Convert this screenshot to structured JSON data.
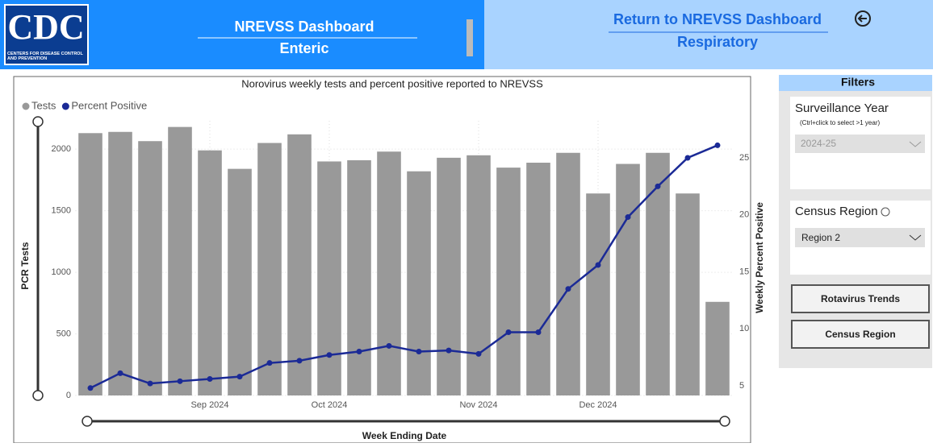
{
  "header": {
    "logo": "CDC",
    "logo_subtitle": "CENTERS FOR DISEASE CONTROL AND PREVENTION",
    "title": "NREVSS Dashboard",
    "subtitle": "Enteric",
    "return_link": "Return to NREVSS Dashboard",
    "return_subtitle": "Respiratory"
  },
  "filters": {
    "title": "Filters",
    "year_label": "Surveillance Year",
    "year_hint": "(Ctrl+click to select >1 year)",
    "year_value": "2024-25",
    "region_label": "Census Region",
    "region_value": "Region 2",
    "buttons": [
      "Rotavirus Trends",
      "Census Region"
    ]
  },
  "chart_data": {
    "type": "bar_line",
    "title": "Norovirus weekly tests and percent positive reported to NREVSS",
    "x_label": "Week Ending Date",
    "y_label": "PCR Tests",
    "y2_label": "Weekly Percent Positive",
    "categories": [
      null,
      null,
      null,
      null,
      "Sep 2024",
      null,
      null,
      null,
      "Oct 2024",
      null,
      null,
      null,
      null,
      "Nov 2024",
      null,
      null,
      null,
      "Dec 2024",
      null,
      null,
      null,
      null
    ],
    "series": [
      {
        "name": "Tests",
        "color": "#999999",
        "type": "bar",
        "values": [
          2130,
          2140,
          2065,
          2180,
          1990,
          1840,
          2050,
          2120,
          1900,
          1910,
          1980,
          1820,
          1930,
          1950,
          1850,
          1890,
          1970,
          1640,
          1880,
          1970,
          1640,
          760
        ]
      },
      {
        "name": "Percent Positive",
        "color": "#1b2a96",
        "type": "line",
        "axis": "y2",
        "values": [
          4.8,
          6.1,
          5.2,
          5.4,
          5.6,
          5.8,
          7.0,
          7.2,
          7.7,
          8.0,
          8.5,
          8.0,
          8.1,
          7.8,
          9.7,
          9.7,
          13.5,
          15.6,
          19.8,
          22.5,
          25.0,
          26.1
        ]
      }
    ],
    "ylim": [
      0,
      2230
    ],
    "yticks": [
      0,
      500,
      1000,
      1500,
      2000
    ],
    "y2lim": [
      4.15,
      28.25
    ],
    "y2ticks": [
      5,
      10,
      15,
      20,
      25
    ],
    "grid": true,
    "legend": "top-left"
  }
}
